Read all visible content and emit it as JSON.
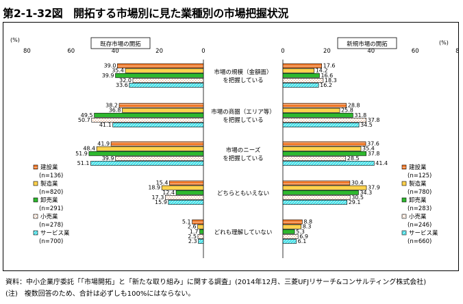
{
  "figure": {
    "title": "第2-1-32図　開拓する市場別に見た業種別の市場把握状況",
    "source_note": "資料：中小企業庁委託「「市場開拓」と「新たな取り組み」に関する調査」(2014年12月、三菱UFJリサーチ&コンサルティング株式会社)",
    "footnote": "(注)　複数回答のため、合計は必ずしも100%にはならない。"
  },
  "chart_data": {
    "type": "bar",
    "orientation": "horizontal",
    "layout": "butterfly",
    "categories": [
      "市場の規模（金額面）\nを把握している",
      "市場の商圏（エリア等）\nを把握している",
      "市場のニーズ\nを把握している",
      "どちらともいえない",
      "どれも理解していない"
    ],
    "unit_label": "(%)",
    "axis_ticks": [
      80,
      60,
      40,
      20,
      0
    ],
    "xlim": [
      0,
      80
    ],
    "panels": [
      {
        "title": "既存市場の開拓",
        "side": "left",
        "series": [
          {
            "name": "建設業",
            "n": "(n=136)",
            "color": "#f07828",
            "pattern": "horizontal-lines",
            "values": [
              39.0,
              38.2,
              41.9,
              15.4,
              5.1
            ]
          },
          {
            "name": "製造業",
            "n": "(n=820)",
            "color": "#ffd24d",
            "pattern": "solid",
            "values": [
              35.4,
              36.8,
              48.4,
              18.9,
              2.6
            ]
          },
          {
            "name": "卸売業",
            "n": "(n=291)",
            "color": "#2eb82e",
            "pattern": "solid",
            "values": [
              39.9,
              49.5,
              51.9,
              12.4,
              1.7
            ]
          },
          {
            "name": "小売業",
            "n": "(n=278)",
            "color": "#e8a070",
            "pattern": "dotted",
            "values": [
              32.0,
              50.7,
              39.9,
              17.3,
              2.5
            ]
          },
          {
            "name": "サービス業",
            "n": "(n=700)",
            "color": "#40e0e8",
            "pattern": "diagonal-lines",
            "values": [
              33.6,
              41.1,
              51.1,
              15.9,
              2.3
            ]
          }
        ]
      },
      {
        "title": "新規市場の開拓",
        "side": "right",
        "series": [
          {
            "name": "建設業",
            "n": "(n=125)",
            "color": "#f07828",
            "pattern": "horizontal-lines",
            "values": [
              17.6,
              28.8,
              37.6,
              30.4,
              8.8
            ]
          },
          {
            "name": "製造業",
            "n": "(n=780)",
            "color": "#ffd24d",
            "pattern": "solid",
            "values": [
              14.2,
              25.8,
              35.4,
              37.9,
              8.3
            ]
          },
          {
            "name": "卸売業",
            "n": "(n=283)",
            "color": "#2eb82e",
            "pattern": "solid",
            "values": [
              16.6,
              31.8,
              37.8,
              34.3,
              5.3
            ]
          },
          {
            "name": "小売業",
            "n": "(n=246)",
            "color": "#e8a070",
            "pattern": "dotted",
            "values": [
              18.3,
              37.8,
              28.5,
              30.5,
              6.9
            ]
          },
          {
            "name": "サービス業",
            "n": "(n=660)",
            "color": "#40e0e8",
            "pattern": "diagonal-lines",
            "values": [
              16.2,
              34.5,
              41.4,
              29.1,
              6.1
            ]
          }
        ]
      }
    ],
    "legend_placement": "left-middle and right-middle",
    "grid": false
  }
}
